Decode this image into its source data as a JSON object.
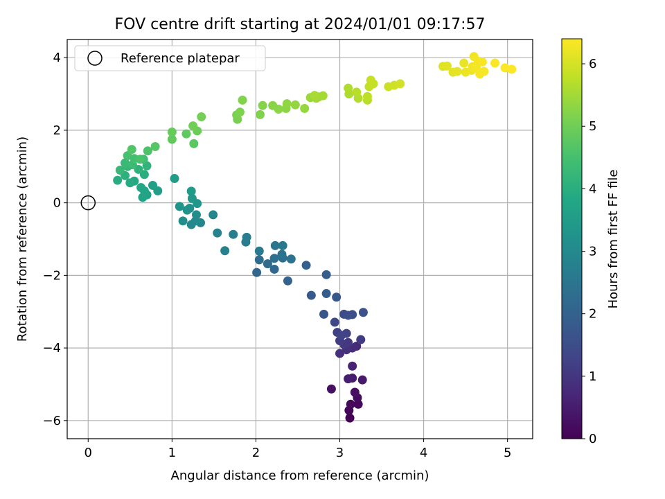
{
  "chart_data": {
    "type": "scatter",
    "title": "FOV centre drift starting at 2024/01/01 09:17:57",
    "xlabel": "Angular distance from reference (arcmin)",
    "ylabel": "Rotation from reference (arcmin)",
    "xlim": [
      -0.25,
      5.3
    ],
    "ylim": [
      -6.5,
      4.5
    ],
    "x_ticks": [
      0,
      1,
      2,
      3,
      4,
      5
    ],
    "y_ticks": [
      -6,
      -4,
      -2,
      0,
      2,
      4
    ],
    "grid": true,
    "legend": {
      "placement": "top-left",
      "entries": [
        "Reference platepar"
      ]
    },
    "reference_point": {
      "x": 0,
      "y": 0,
      "label": "Reference platepar"
    },
    "colorbar": {
      "label": "Hours from first FF file",
      "range": [
        0,
        6.4
      ],
      "ticks": [
        0,
        1,
        2,
        3,
        4,
        5,
        6
      ],
      "colormap": "viridis"
    },
    "points": [
      [
        3.12,
        -5.93,
        0.02
      ],
      [
        3.11,
        -5.72,
        0.08
      ],
      [
        3.22,
        -5.55,
        0.12
      ],
      [
        3.13,
        -5.55,
        0.15
      ],
      [
        3.21,
        -5.37,
        0.2
      ],
      [
        3.18,
        -5.22,
        0.25
      ],
      [
        2.9,
        -5.13,
        0.3
      ],
      [
        3.27,
        -4.88,
        0.45
      ],
      [
        3.15,
        -4.83,
        0.5
      ],
      [
        3.1,
        -4.85,
        0.55
      ],
      [
        3.15,
        -4.5,
        0.6
      ],
      [
        3.2,
        -3.95,
        0.75
      ],
      [
        3.15,
        -4.0,
        0.8
      ],
      [
        3.0,
        -4.15,
        0.85
      ],
      [
        3.08,
        -4.05,
        0.9
      ],
      [
        3.1,
        -3.85,
        1.0
      ],
      [
        3.05,
        -3.9,
        1.05
      ],
      [
        3.25,
        -3.77,
        1.1
      ],
      [
        3.0,
        -3.8,
        1.15
      ],
      [
        2.97,
        -3.57,
        1.2
      ],
      [
        3.08,
        -3.6,
        1.25
      ],
      [
        3.02,
        -3.65,
        1.3
      ],
      [
        2.94,
        -3.29,
        1.4
      ],
      [
        3.05,
        -3.07,
        1.45
      ],
      [
        3.15,
        -3.08,
        1.5
      ],
      [
        3.1,
        -3.1,
        1.55
      ],
      [
        3.28,
        -3.02,
        1.6
      ],
      [
        2.81,
        -3.07,
        1.7
      ],
      [
        2.96,
        -2.6,
        1.75
      ],
      [
        2.66,
        -2.55,
        1.8
      ],
      [
        2.84,
        -2.5,
        1.85
      ],
      [
        2.84,
        -1.98,
        1.9
      ],
      [
        2.6,
        -1.72,
        1.95
      ],
      [
        2.38,
        -2.15,
        2.05
      ],
      [
        2.01,
        -1.92,
        2.1
      ],
      [
        2.22,
        -1.83,
        2.15
      ],
      [
        2.14,
        -1.68,
        2.2
      ],
      [
        2.04,
        -1.57,
        2.25
      ],
      [
        2.32,
        -1.52,
        2.3
      ],
      [
        2.22,
        -1.53,
        2.35
      ],
      [
        2.42,
        -1.55,
        2.4
      ],
      [
        2.31,
        -1.42,
        2.45
      ],
      [
        2.23,
        -1.18,
        2.5
      ],
      [
        2.32,
        -1.18,
        2.55
      ],
      [
        2.04,
        -1.33,
        2.6
      ],
      [
        1.88,
        -1.08,
        2.65
      ],
      [
        1.89,
        -0.95,
        2.7
      ],
      [
        1.73,
        -0.87,
        2.75
      ],
      [
        1.63,
        -1.32,
        2.8
      ],
      [
        1.54,
        -0.83,
        2.85
      ],
      [
        1.49,
        -0.33,
        2.9
      ],
      [
        1.34,
        -0.55,
        2.95
      ],
      [
        1.23,
        -0.6,
        3.0
      ],
      [
        1.28,
        -0.5,
        3.05
      ],
      [
        1.29,
        -0.33,
        3.1
      ],
      [
        1.13,
        -0.5,
        3.15
      ],
      [
        1.21,
        -0.15,
        3.2
      ],
      [
        1.18,
        -0.2,
        3.25
      ],
      [
        1.09,
        -0.1,
        3.3
      ],
      [
        1.3,
        -0.02,
        3.35
      ],
      [
        1.24,
        0.12,
        3.4
      ],
      [
        1.23,
        0.32,
        3.45
      ],
      [
        1.03,
        0.67,
        3.5
      ],
      [
        0.83,
        0.33,
        3.55
      ],
      [
        0.77,
        0.48,
        3.6
      ],
      [
        0.7,
        0.22,
        3.65
      ],
      [
        0.65,
        0.15,
        3.7
      ],
      [
        0.67,
        0.33,
        3.75
      ],
      [
        0.63,
        0.42,
        3.8
      ],
      [
        0.55,
        0.6,
        3.85
      ],
      [
        0.5,
        0.55,
        3.9
      ],
      [
        0.35,
        0.62,
        3.95
      ],
      [
        0.67,
        0.78,
        4.0
      ],
      [
        0.44,
        0.75,
        4.05
      ],
      [
        0.6,
        0.92,
        4.1
      ],
      [
        0.7,
        1.02,
        4.15
      ],
      [
        0.47,
        1.0,
        4.2
      ],
      [
        0.38,
        0.9,
        4.25
      ],
      [
        0.44,
        1.1,
        4.3
      ],
      [
        0.53,
        1.05,
        4.35
      ],
      [
        0.66,
        1.2,
        4.4
      ],
      [
        0.55,
        1.22,
        4.45
      ],
      [
        0.47,
        1.3,
        4.5
      ],
      [
        0.62,
        1.2,
        4.55
      ],
      [
        0.71,
        1.43,
        4.6
      ],
      [
        0.52,
        1.47,
        4.65
      ],
      [
        0.8,
        1.55,
        4.7
      ],
      [
        1.26,
        1.63,
        4.75
      ],
      [
        1.17,
        1.9,
        4.8
      ],
      [
        1.0,
        1.75,
        4.85
      ],
      [
        1.0,
        1.95,
        4.9
      ],
      [
        1.3,
        1.98,
        4.95
      ],
      [
        1.25,
        2.12,
        5.0
      ],
      [
        1.35,
        2.37,
        5.05
      ],
      [
        1.78,
        2.3,
        5.1
      ],
      [
        1.77,
        2.42,
        5.12
      ],
      [
        1.81,
        2.5,
        5.15
      ],
      [
        2.05,
        2.43,
        5.18
      ],
      [
        1.84,
        2.83,
        5.2
      ],
      [
        2.08,
        2.68,
        5.22
      ],
      [
        2.2,
        2.68,
        5.25
      ],
      [
        2.27,
        2.58,
        5.28
      ],
      [
        2.36,
        2.6,
        5.3
      ],
      [
        2.37,
        2.73,
        5.33
      ],
      [
        2.47,
        2.7,
        5.36
      ],
      [
        2.58,
        2.6,
        5.4
      ],
      [
        2.65,
        2.9,
        5.43
      ],
      [
        2.72,
        2.88,
        5.46
      ],
      [
        2.75,
        2.92,
        5.5
      ],
      [
        2.8,
        2.95,
        5.53
      ],
      [
        2.7,
        2.96,
        5.56
      ],
      [
        3.11,
        3.0,
        5.6
      ],
      [
        3.1,
        3.16,
        5.63
      ],
      [
        3.22,
        2.88,
        5.66
      ],
      [
        3.2,
        3.05,
        5.7
      ],
      [
        3.33,
        2.83,
        5.73
      ],
      [
        3.33,
        2.93,
        5.76
      ],
      [
        3.35,
        3.2,
        5.8
      ],
      [
        3.4,
        3.28,
        5.83
      ],
      [
        3.37,
        3.38,
        5.86
      ],
      [
        3.58,
        3.2,
        5.9
      ],
      [
        3.65,
        3.24,
        5.93
      ],
      [
        3.72,
        3.28,
        5.96
      ],
      [
        4.23,
        3.76,
        6.1
      ],
      [
        4.28,
        3.77,
        6.12
      ],
      [
        4.35,
        3.6,
        6.15
      ],
      [
        4.4,
        3.62,
        6.17
      ],
      [
        4.48,
        3.85,
        6.2
      ],
      [
        4.5,
        3.6,
        6.22
      ],
      [
        4.57,
        3.65,
        6.24
      ],
      [
        4.6,
        4.03,
        6.26
      ],
      [
        4.58,
        3.75,
        6.28
      ],
      [
        4.63,
        3.72,
        6.3
      ],
      [
        4.65,
        3.9,
        6.32
      ],
      [
        4.67,
        3.55,
        6.33
      ],
      [
        4.72,
        3.62,
        6.34
      ],
      [
        4.7,
        3.88,
        6.35
      ],
      [
        4.85,
        3.85,
        6.36
      ],
      [
        4.97,
        3.72,
        6.37
      ],
      [
        5.05,
        3.68,
        6.38
      ]
    ]
  }
}
